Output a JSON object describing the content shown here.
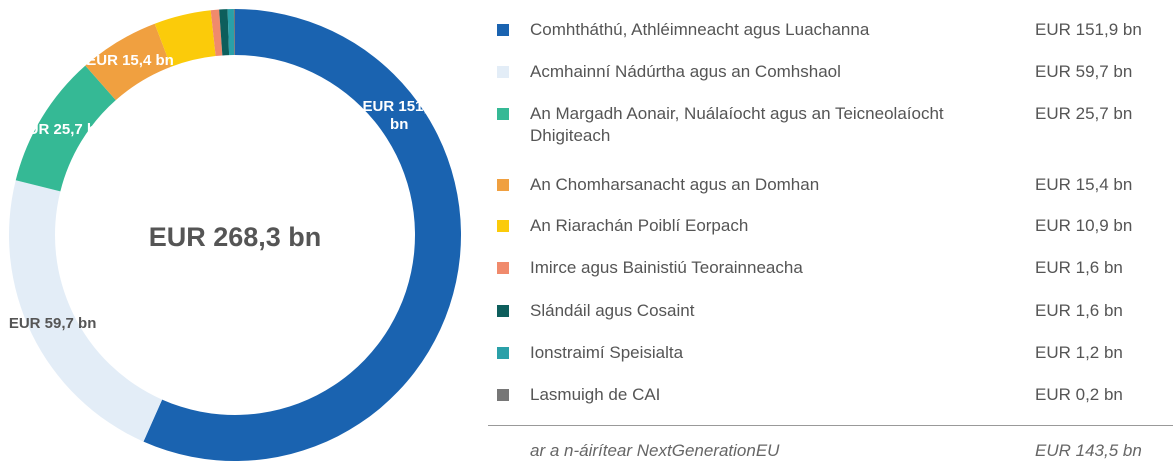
{
  "chart_data": {
    "type": "donut",
    "center_label": "EUR 268,3 bn",
    "categories": [
      "Comhtháthú, Athléimneacht agus Luachanna",
      "Acmhainní Nádúrtha agus an Comhshaol",
      "An Margadh Aonair, Nuálaíocht agus an Teicneo­laíocht Dhigiteach",
      "An Chomharsanacht agus an Domhan",
      "An Riarachán Poiblí Eorpach",
      "Imirce agus Bainistiú Teorainneacha",
      "Slándáil agus Cosaint",
      "Ionstraimí Speisialta",
      "Lasmuigh de CAI"
    ],
    "values": [
      151.9,
      59.7,
      25.7,
      15.4,
      10.9,
      1.6,
      1.6,
      1.2,
      0.2
    ],
    "value_labels": [
      "EUR 151,9 bn",
      "EUR 59,7 bn",
      "EUR 25,7 bn",
      "EUR 15,4 bn",
      "EUR 10,9 bn",
      "EUR 1,6 bn",
      "EUR 1,6 bn",
      "EUR 1,2 bn",
      "EUR 0,2 bn"
    ],
    "colors": [
      "#1a63b0",
      "#e3edf7",
      "#35b995",
      "#f0a040",
      "#fbcb0a",
      "#f08a6c",
      "#0d5e5c",
      "#2aa0a8",
      "#777777"
    ],
    "note": {
      "label": "ar a n-áirítear NextGenerationEU",
      "value": "EUR 143,5 bn"
    }
  }
}
